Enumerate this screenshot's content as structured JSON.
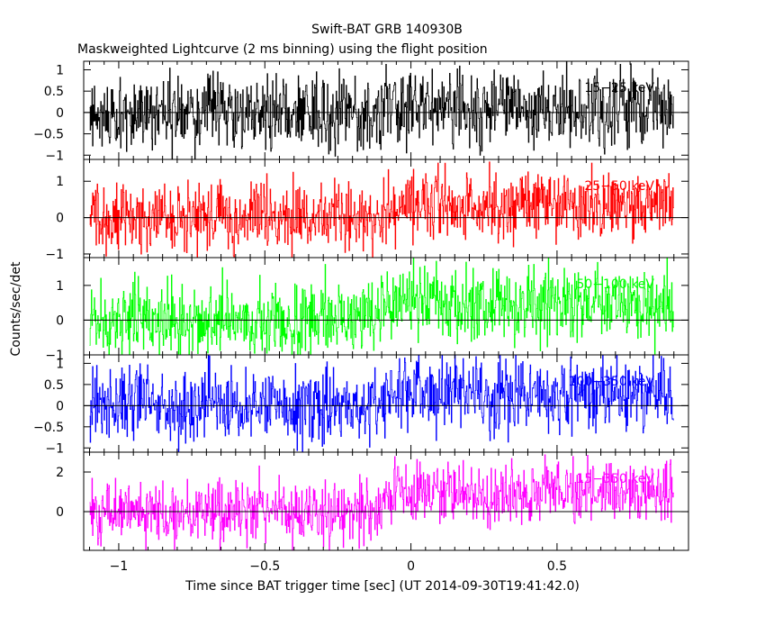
{
  "title": "Swift-BAT GRB 140930B",
  "subtitle": "Maskweighted Lightcurve (2 ms binning) using the flight position",
  "ylabel": "Counts/sec/det",
  "xlabel": "Time since BAT trigger time [sec] (UT 2014-09-30T19:41:42.0)",
  "colors": {
    "axis": "#000000",
    "background": "#ffffff"
  },
  "chart_data": {
    "type": "line",
    "style": "histogram-steps",
    "bin_width_sec": 0.002,
    "x_range": [
      -1.1,
      0.9
    ],
    "xlim": [
      -1.12,
      0.95
    ],
    "x_ticks": [
      {
        "value": -1,
        "label": "−1"
      },
      {
        "value": -0.5,
        "label": "−0.5"
      },
      {
        "value": 0,
        "label": "0"
      },
      {
        "value": 0.5,
        "label": "0.5"
      }
    ],
    "grid": false,
    "burst_onset_sec": -0.1,
    "panels": [
      {
        "name": "15−25 keV",
        "color": "#000000",
        "ylim": [
          -1.1,
          1.2
        ],
        "y_ticks": [
          {
            "value": 1,
            "label": "1"
          },
          {
            "value": 0.5,
            "label": "0.5"
          },
          {
            "value": 0,
            "label": "0"
          },
          {
            "value": -0.5,
            "label": "−0.5"
          },
          {
            "value": -1,
            "label": "−1"
          }
        ],
        "pre_mean": 0.0,
        "post_mean": 0.1,
        "noise": 0.45
      },
      {
        "name": "25−50 keV",
        "color": "#ff0000",
        "ylim": [
          -1.1,
          1.6
        ],
        "y_ticks": [
          {
            "value": 1,
            "label": "1"
          },
          {
            "value": 0,
            "label": "0"
          },
          {
            "value": -1,
            "label": "−1"
          }
        ],
        "pre_mean": 0.0,
        "post_mean": 0.35,
        "noise": 0.5
      },
      {
        "name": "50−100 keV",
        "color": "#00ff00",
        "ylim": [
          -1.0,
          1.8
        ],
        "y_ticks": [
          {
            "value": 1,
            "label": "1"
          },
          {
            "value": 0,
            "label": "0"
          },
          {
            "value": -1,
            "label": "−1"
          }
        ],
        "pre_mean": 0.05,
        "post_mean": 0.45,
        "noise": 0.55
      },
      {
        "name": "100−350 keV",
        "color": "#0000ff",
        "ylim": [
          -1.1,
          1.2
        ],
        "y_ticks": [
          {
            "value": 1,
            "label": "1"
          },
          {
            "value": 0.5,
            "label": "0.5"
          },
          {
            "value": 0,
            "label": "0"
          },
          {
            "value": -0.5,
            "label": "−0.5"
          },
          {
            "value": -1,
            "label": "−1"
          }
        ],
        "pre_mean": 0.0,
        "post_mean": 0.25,
        "noise": 0.45
      },
      {
        "name": "15−350 keV",
        "color": "#ff00ff",
        "ylim": [
          -1.95,
          3.0
        ],
        "y_ticks": [
          {
            "value": 2,
            "label": "2"
          },
          {
            "value": 0,
            "label": "0"
          }
        ],
        "pre_mean": 0.0,
        "post_mean": 0.9,
        "noise": 0.8
      }
    ]
  }
}
